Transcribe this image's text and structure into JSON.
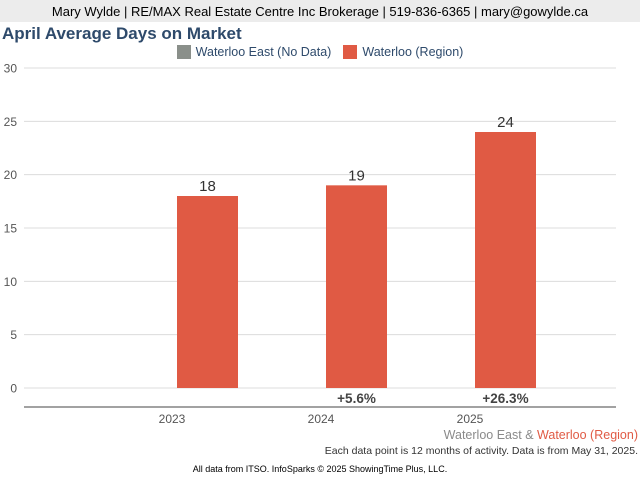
{
  "header": {
    "agent_info": "Mary Wylde | RE/MAX Real Estate Centre Inc Brokerage | 519-836-6365 | mary@gowylde.ca"
  },
  "colors": {
    "series_east": "#8a8f8a",
    "series_region": "#e05a44",
    "title": "#2e4a6b"
  },
  "chart_data": {
    "type": "bar",
    "title": "April Average Days on Market",
    "categories": [
      "2023",
      "2024",
      "2025"
    ],
    "series": [
      {
        "name": "Waterloo East (No Data)",
        "values": [
          null,
          null,
          null
        ]
      },
      {
        "name": "Waterloo (Region)",
        "values": [
          18,
          19,
          24
        ]
      }
    ],
    "value_labels": [
      "18",
      "19",
      "24"
    ],
    "change_labels": [
      "",
      "+5.6%",
      "+26.3%"
    ],
    "ylim": [
      0,
      30
    ],
    "yticks": [
      "0",
      "5",
      "10",
      "15",
      "20",
      "25",
      "30"
    ],
    "xlabel": "",
    "ylabel": "",
    "grid": true,
    "legend_position": "top-center"
  },
  "footer": {
    "legend_east": "Waterloo East",
    "legend_amp": "&",
    "legend_region": "Waterloo (Region)",
    "note": "Each data point is 12 months of activity. Data is from May 31, 2025.",
    "source": "All data from ITSO. InfoSparks © 2025 ShowingTime Plus, LLC."
  }
}
